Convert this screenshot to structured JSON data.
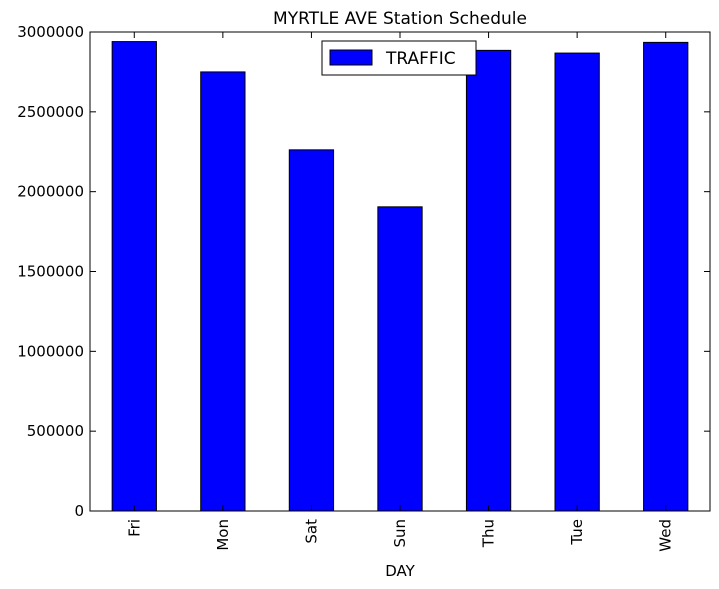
{
  "chart_data": {
    "type": "bar",
    "title": "MYRTLE AVE Station Schedule",
    "xlabel": "DAY",
    "ylabel": "",
    "categories": [
      "Fri",
      "Mon",
      "Sat",
      "Sun",
      "Thu",
      "Tue",
      "Wed"
    ],
    "series": [
      {
        "name": "TRAFFIC",
        "color": "#0000ff",
        "values": [
          2940000,
          2750000,
          2262000,
          1905000,
          2885000,
          2868000,
          2935000
        ]
      }
    ],
    "ylim": [
      0,
      3000000
    ],
    "yticks": [
      "0",
      "500000",
      "1000000",
      "1500000",
      "2000000",
      "2500000",
      "3000000"
    ],
    "grid": false,
    "legend_position": "top-center"
  }
}
